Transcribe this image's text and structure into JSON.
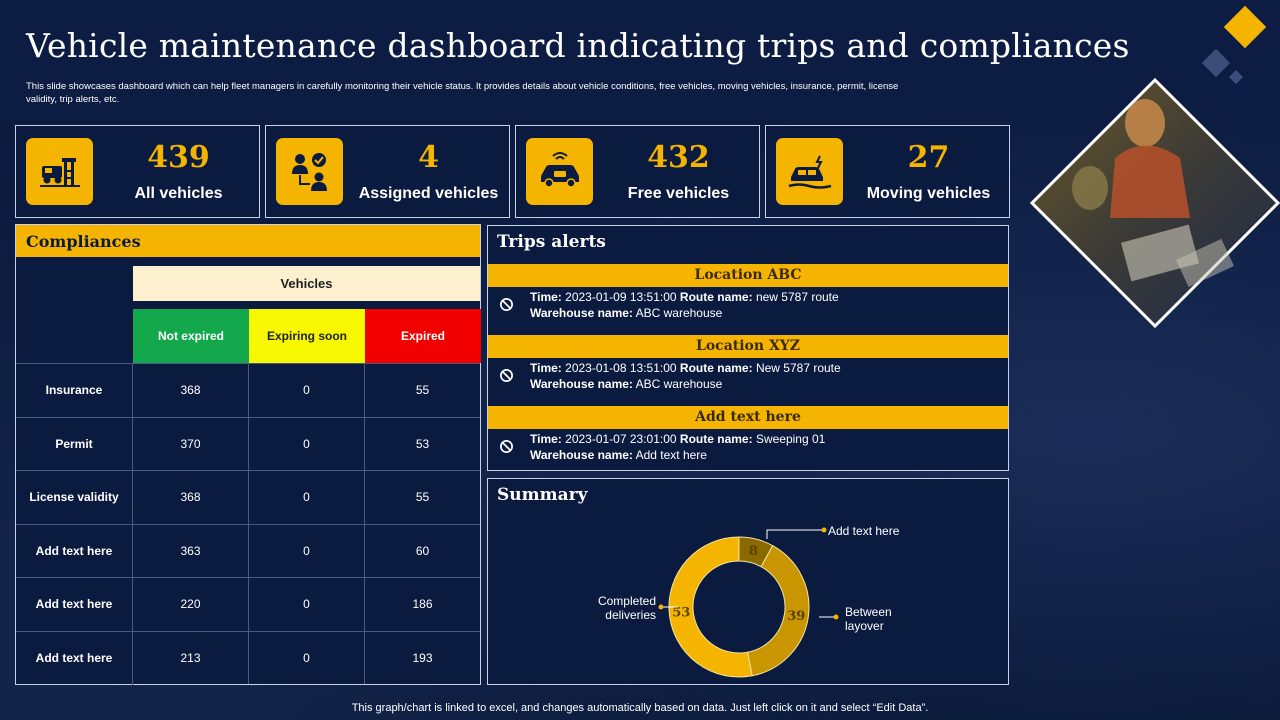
{
  "header": {
    "title": "Vehicle maintenance dashboard indicating trips and compliances",
    "subtitle": "This slide showcases dashboard which can help fleet managers in carefully monitoring their vehicle status. It provides details about vehicle conditions, free vehicles, moving vehicles, insurance, permit, license validity, trip alerts, etc."
  },
  "stats": [
    {
      "value": "439",
      "label": "All vehicles",
      "icon": "tow-truck-icon"
    },
    {
      "value": "4",
      "label": "Assigned vehicles",
      "icon": "assigned-users-icon"
    },
    {
      "value": "432",
      "label": "Free vehicles",
      "icon": "connected-car-icon"
    },
    {
      "value": "27",
      "label": "Moving vehicles",
      "icon": "moving-car-icon"
    }
  ],
  "compliances": {
    "title": "Compliances",
    "group_header": "Vehicles",
    "columns": [
      "Not expired",
      "Expiring soon",
      "Expired"
    ],
    "column_colors": [
      "#12a84b",
      "#f7f700",
      "#f20000"
    ],
    "rows": [
      {
        "label": "Insurance",
        "values": [
          "368",
          "0",
          "55"
        ]
      },
      {
        "label": "Permit",
        "values": [
          "370",
          "0",
          "53"
        ]
      },
      {
        "label": "License validity",
        "values": [
          "368",
          "0",
          "55"
        ]
      },
      {
        "label": "Add  text here",
        "values": [
          "363",
          "0",
          "60"
        ]
      },
      {
        "label": "Add  text here",
        "values": [
          "220",
          "0",
          "186"
        ]
      },
      {
        "label": "Add  text here",
        "values": [
          "213",
          "0",
          "193"
        ]
      }
    ]
  },
  "trips": {
    "title": "Trips alerts",
    "time_label": "Time:",
    "route_label": "Route name:",
    "warehouse_label": "Warehouse name:",
    "alerts": [
      {
        "location": "Location ABC",
        "time": "2023-01-09 13:51:00",
        "route": "new 5787 route",
        "warehouse": "ABC warehouse"
      },
      {
        "location": "Location XYZ",
        "time": "2023-01-08 13:51:00",
        "route": "New 5787 route",
        "warehouse": "ABC warehouse"
      },
      {
        "location": "Add text here",
        "time": "2023-01-07 23:01:00",
        "route": "Sweeping 01",
        "warehouse": "Add text here"
      }
    ]
  },
  "summary": {
    "title": "Summary",
    "chart_data": {
      "type": "pie",
      "title": "Summary",
      "categories": [
        "Add text here",
        "Between layover",
        "Completed deliveries"
      ],
      "values": [
        8,
        39,
        53
      ],
      "colors": [
        "#8a6a00",
        "#c99500",
        "#f4b400"
      ],
      "labels": {
        "add_text": "Add text here",
        "between_1": "Between",
        "between_2": "layover",
        "completed_1": "Completed",
        "completed_2": "deliveries"
      }
    }
  },
  "footer": {
    "note": "This graph/chart is linked to excel,  and changes automatically based on data. Just left click on it and select “Edit Data”."
  },
  "colors": {
    "accent": "#f4b400",
    "background": "#0b1b40"
  }
}
